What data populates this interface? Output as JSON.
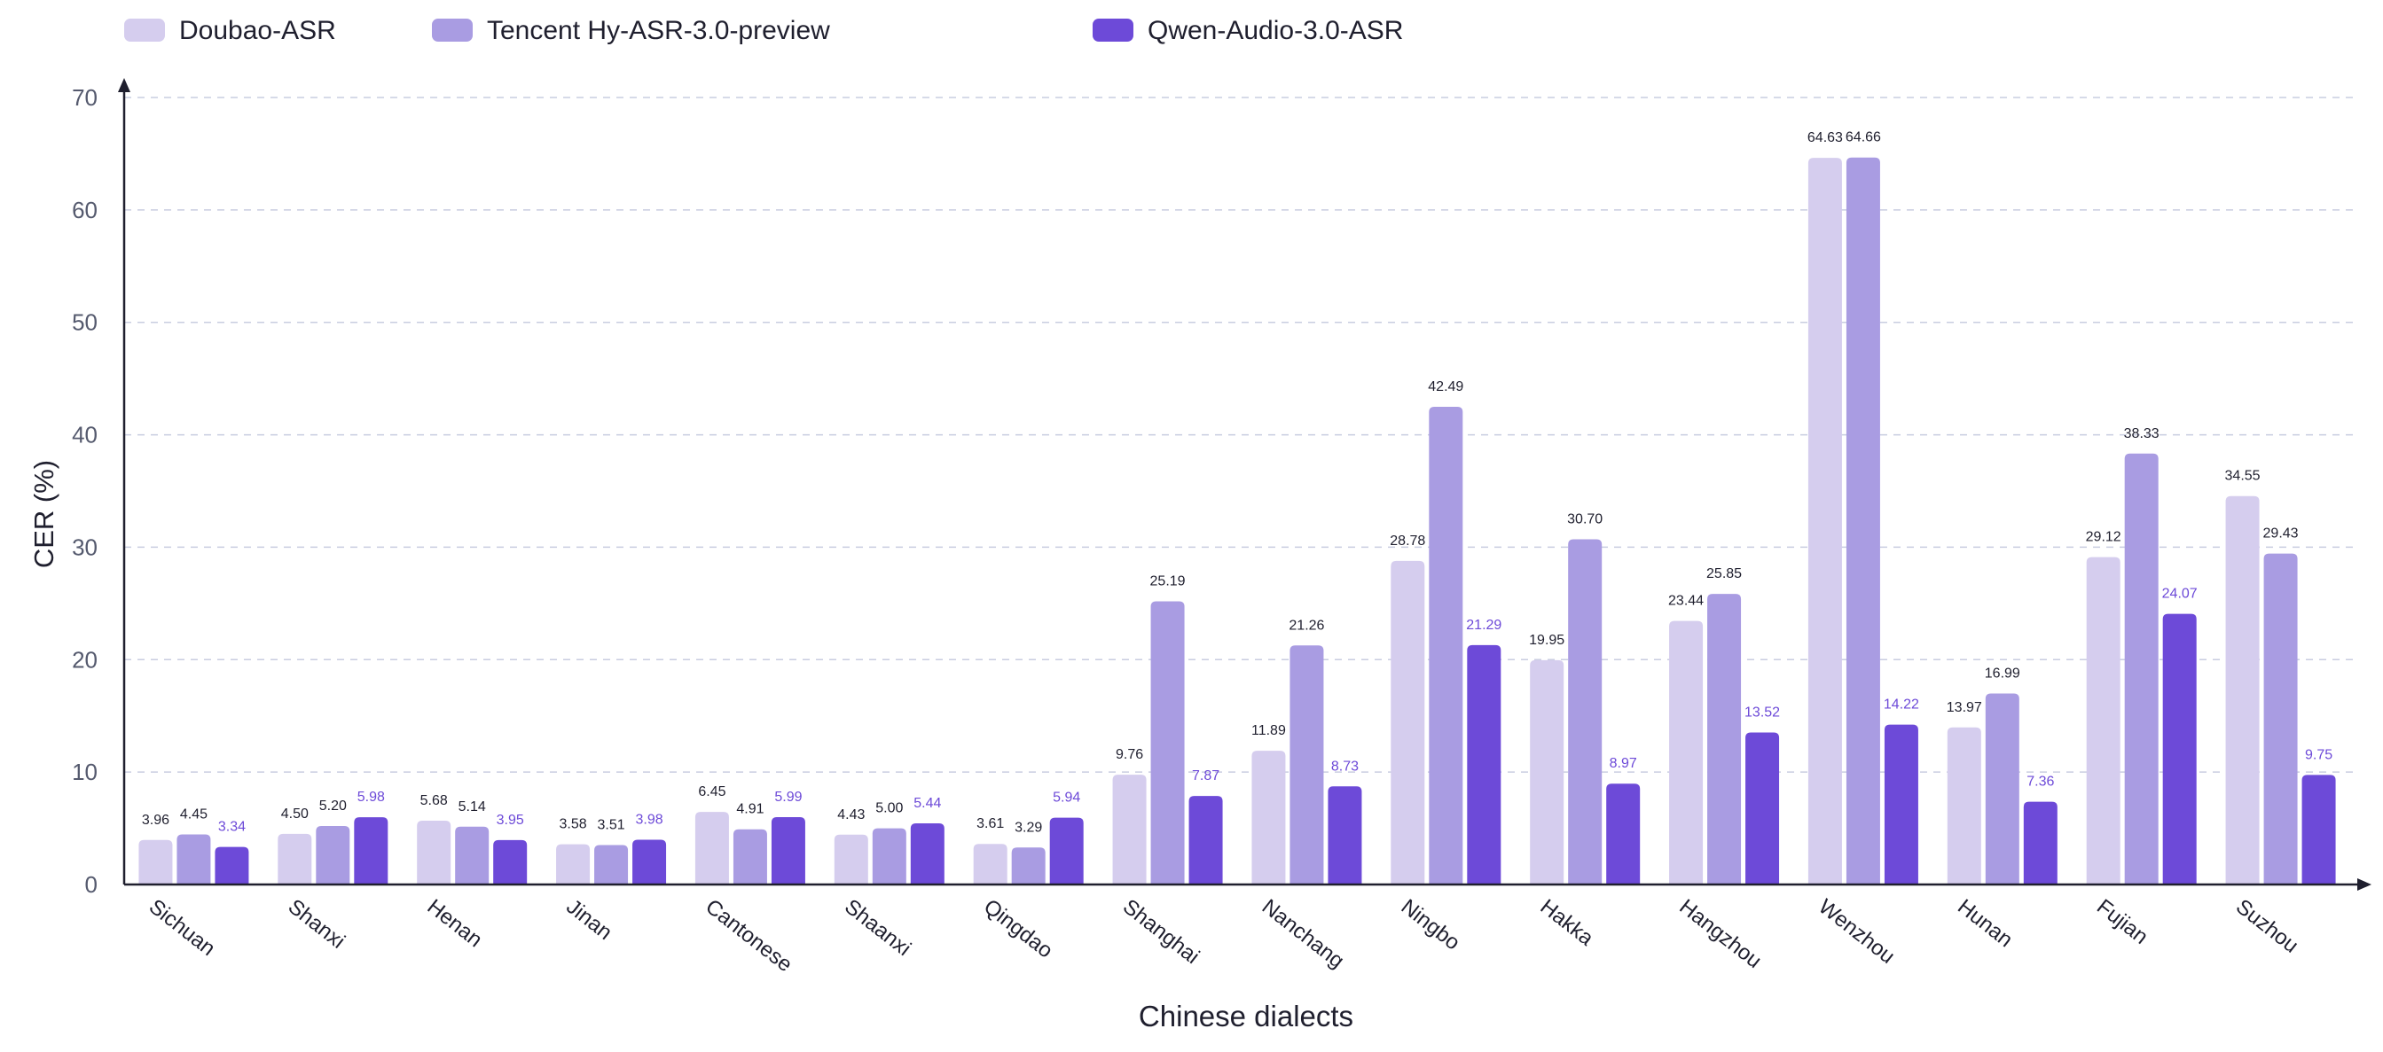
{
  "chart_data": {
    "type": "bar",
    "xlabel": "Chinese dialects",
    "ylabel": "CER (%)",
    "ylim": [
      0,
      70
    ],
    "yticks": [
      0,
      10,
      20,
      30,
      40,
      50,
      60,
      70
    ],
    "grid": true,
    "legend_position": "top-left",
    "categories": [
      "Sichuan",
      "Shanxi",
      "Henan",
      "Jinan",
      "Cantonese",
      "Shaanxi",
      "Qingdao",
      "Shanghai",
      "Nanchang",
      "Ningbo",
      "Hakka",
      "Hangzhou",
      "Wenzhou",
      "Hunan",
      "Fujian",
      "Suzhou"
    ],
    "series": [
      {
        "name": "Doubao-ASR",
        "color": "#d5cdee",
        "label_color": "#1f1f2e",
        "values": [
          3.96,
          4.5,
          5.68,
          3.58,
          6.45,
          4.43,
          3.61,
          9.76,
          11.89,
          28.78,
          19.95,
          23.44,
          64.63,
          13.97,
          29.12,
          34.55
        ],
        "labels": [
          "3.96",
          "4.50",
          "5.68",
          "3.58",
          "6.45",
          "4.43",
          "3.61",
          "9.76",
          "11.89",
          "28.78",
          "19.95",
          "23.44",
          "64.63",
          "13.97",
          "29.12",
          "34.55"
        ]
      },
      {
        "name": "Tencent Hy-ASR-3.0-preview",
        "color": "#a99ce2",
        "label_color": "#1f1f2e",
        "values": [
          4.45,
          5.2,
          5.14,
          3.51,
          4.91,
          5.0,
          3.29,
          25.19,
          21.26,
          42.49,
          30.7,
          25.85,
          64.66,
          16.99,
          38.33,
          29.43
        ],
        "labels": [
          "4.45",
          "5.20",
          "5.14",
          "3.51",
          "4.91",
          "5.00",
          "3.29",
          "25.19",
          "21.26",
          "42.49",
          "30.70",
          "25.85",
          "64.66",
          "16.99",
          "38.33",
          "29.43"
        ]
      },
      {
        "name": "Qwen-Audio-3.0-ASR",
        "color": "#6d4ad8",
        "label_color": "#6d4ad8",
        "values": [
          3.34,
          5.98,
          3.95,
          3.98,
          5.99,
          5.44,
          5.94,
          7.87,
          8.73,
          21.29,
          8.97,
          13.52,
          14.22,
          7.36,
          24.07,
          9.75
        ],
        "labels": [
          "3.34",
          "5.98",
          "3.95",
          "3.98",
          "5.99",
          "5.44",
          "5.94",
          "7.87",
          "8.73",
          "21.29",
          "8.97",
          "13.52",
          "14.22",
          "7.36",
          "24.07",
          "9.75"
        ]
      }
    ]
  },
  "colors": {
    "axis": "#1f1f2e",
    "grid": "#c9cde0",
    "tick_text": "#555a6e",
    "title_text": "#1f1f2e"
  }
}
